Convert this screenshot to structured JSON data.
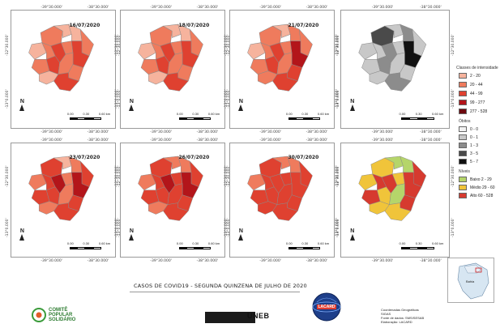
{
  "maps": [
    {
      "date": "16/07/2020",
      "palette": "cases",
      "fills": [
        2,
        1,
        1,
        2,
        1,
        2,
        3,
        2,
        3,
        2,
        3,
        2,
        2,
        3,
        1
      ]
    },
    {
      "date": "18/07/2020",
      "palette": "cases",
      "fills": [
        2,
        1,
        1,
        2,
        1,
        2,
        3,
        2,
        3,
        2,
        3,
        2,
        2,
        3,
        1
      ]
    },
    {
      "date": "21/07/2020",
      "palette": "cases",
      "fills": [
        2,
        1,
        2,
        2,
        1,
        2,
        3,
        2,
        4,
        2,
        3,
        2,
        3,
        3,
        2
      ]
    },
    {
      "date": "",
      "palette": "deaths",
      "fills": [
        3,
        1,
        2,
        1,
        1,
        1,
        2,
        1,
        4,
        1,
        2,
        1,
        1,
        2,
        1
      ]
    },
    {
      "date": "23/07/2020",
      "palette": "cases",
      "fills": [
        3,
        1,
        2,
        3,
        2,
        3,
        4,
        2,
        4,
        3,
        3,
        2,
        3,
        3,
        2
      ]
    },
    {
      "date": "26/07/2020",
      "palette": "cases",
      "fills": [
        3,
        2,
        2,
        3,
        2,
        3,
        4,
        3,
        4,
        3,
        3,
        3,
        3,
        3,
        2
      ]
    },
    {
      "date": "30/07/2020",
      "palette": "cases",
      "fills": [
        3,
        2,
        2,
        3,
        2,
        3,
        3,
        3,
        3,
        3,
        3,
        3,
        3,
        3,
        3
      ]
    },
    {
      "date": "",
      "palette": "levels",
      "fills": [
        1,
        0,
        0,
        2,
        1,
        2,
        2,
        1,
        2,
        2,
        1,
        0,
        2,
        1,
        1
      ]
    }
  ],
  "coords": {
    "lon_a": "-39°30.000'",
    "lon_b": "-38°30.000'",
    "lat_a": "-12°30.000'",
    "lat_b": "-13°0.000'"
  },
  "north": "N",
  "scale": [
    "0.00",
    "0.30",
    "0.60 km"
  ],
  "legend_cases": {
    "title": "Classes de intensidade",
    "items": [
      {
        "label": "2 - 20",
        "color": "#f6b39d"
      },
      {
        "label": "20 - 44",
        "color": "#ef7b5d"
      },
      {
        "label": "44 - 99",
        "color": "#df4130"
      },
      {
        "label": "99 - 277",
        "color": "#b3151a"
      },
      {
        "label": "277 - 528",
        "color": "#6e0a10"
      }
    ]
  },
  "legend_deaths": {
    "title": "Óbitos",
    "items": [
      {
        "label": "0 - 0",
        "color": "#f2f2f2"
      },
      {
        "label": "0 - 1",
        "color": "#c8c8c8"
      },
      {
        "label": "1 - 3",
        "color": "#8c8c8c"
      },
      {
        "label": "3 - 5",
        "color": "#4a4a4a"
      },
      {
        "label": "5 - 7",
        "color": "#111111"
      }
    ]
  },
  "legend_levels": {
    "title": "Níveis",
    "items": [
      {
        "label": "Baixo 2 - 29",
        "color": "#b5d56a"
      },
      {
        "label": "Médio 29 - 60",
        "color": "#f0c43a"
      },
      {
        "label": "Alto 60 - 528",
        "color": "#d63a2f"
      }
    ]
  },
  "main_title": "CASOS DE COVID19 - SEGUNDA  QUINZENA DE JULHO DE  2020",
  "credits": {
    "line1": "Coordenadas Geográficas",
    "line2": "SIGAS",
    "line3": "Fonte de dados: SMS/SESAB",
    "line4": "Elaboração: LACARD"
  },
  "logos": {
    "comite_1": "COMITÊ",
    "comite_2": "POPULAR",
    "comite_3": "SOLIDÁRIO",
    "uneb": "UNEB",
    "lacard": "LACARD"
  },
  "inset_label": "Bahia"
}
